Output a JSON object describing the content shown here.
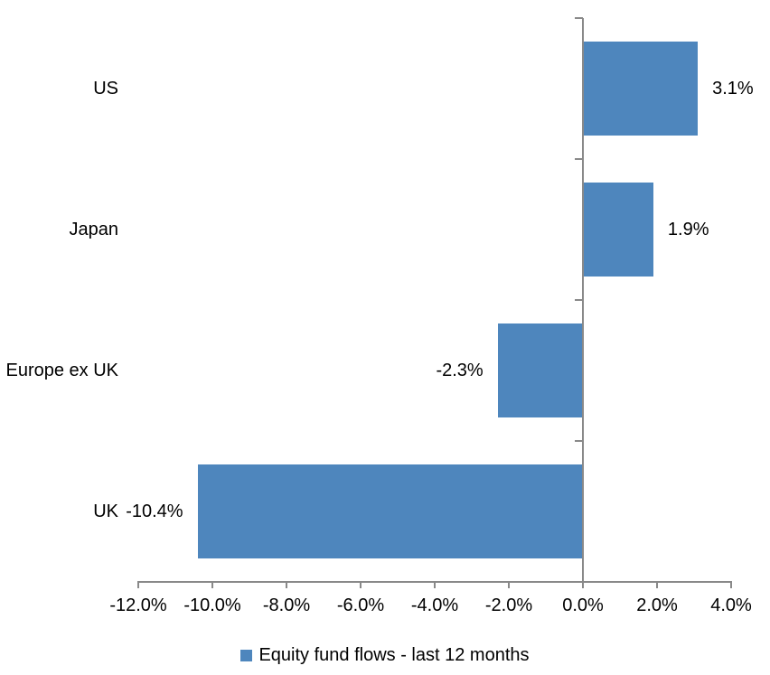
{
  "chart_data": {
    "type": "bar",
    "orientation": "horizontal",
    "title": "",
    "categories": [
      "US",
      "Japan",
      "Europe ex UK",
      "UK"
    ],
    "series": [
      {
        "name": "Equity fund flows - last 12 months",
        "values": [
          3.1,
          1.9,
          -2.3,
          -10.4
        ],
        "data_labels": [
          "3.1%",
          "1.9%",
          "-2.3%",
          "-10.4%"
        ],
        "color": "#4E86BD"
      }
    ],
    "legend": "Equity fund flows - last 12 months",
    "legend_position": "bottom",
    "legend_marker": "square",
    "xlim": [
      -12,
      4
    ],
    "x_ticks": [
      {
        "value": -12,
        "label": "-12.0%"
      },
      {
        "value": -10,
        "label": "-10.0%"
      },
      {
        "value": -8,
        "label": "-8.0%"
      },
      {
        "value": -6,
        "label": "-6.0%"
      },
      {
        "value": -4,
        "label": "-4.0%"
      },
      {
        "value": -2,
        "label": "-2.0%"
      },
      {
        "value": 0,
        "label": "0.0%"
      },
      {
        "value": 2,
        "label": "2.0%"
      },
      {
        "value": 4,
        "label": "4.0%"
      }
    ],
    "grid": false,
    "axis_color": "#898989",
    "text_color": "#000000",
    "background_color": "#FFFFFF"
  }
}
